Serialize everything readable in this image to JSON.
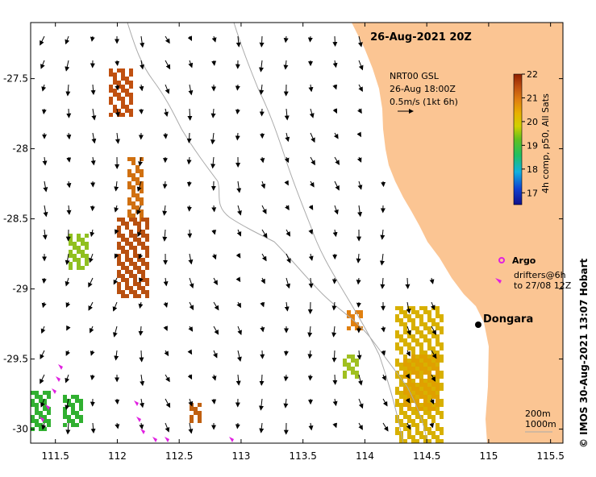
{
  "map": {
    "title": "26-Aug-2021 20Z",
    "x_ticks": [
      "111.5",
      "112",
      "112.5",
      "113",
      "113.5",
      "114",
      "114.5",
      "115",
      "115.5"
    ],
    "x_tick_values": [
      111.5,
      112,
      112.5,
      113,
      113.5,
      114,
      114.5,
      115,
      115.5
    ],
    "y_ticks": [
      "-27.5",
      "-28",
      "-28.5",
      "-29",
      "-29.5",
      "-30"
    ],
    "y_tick_values": [
      -27.5,
      -28,
      -28.5,
      -29,
      -29.5,
      -30
    ],
    "lon_range": [
      111.3,
      115.6
    ],
    "lat_range": [
      -30.1,
      -27.1
    ],
    "land_color": "#fbc593",
    "ocean_color": "#ffffff",
    "current_info": {
      "line1": "NRT00 GSL",
      "line2": "26-Aug 18:00Z",
      "line3": "0.5m/s (1kt 6h)"
    },
    "colorbar": {
      "label": "4h comp, p50, All Sats",
      "ticks": [
        "22",
        "21",
        "20",
        "19",
        "18",
        "17"
      ],
      "tick_values": [
        22,
        21,
        20,
        19,
        18,
        17
      ],
      "range": [
        16.5,
        22
      ]
    },
    "legend": {
      "argo_label": "Argo",
      "argo_color": "#e020e0",
      "drifters_line1": "drifters@6h",
      "drifters_line2": "to 27/08 12Z"
    },
    "town": {
      "name": "Dongara",
      "lon": 114.93,
      "lat": -29.25
    },
    "contour_labels": {
      "line1": "200m",
      "line2": "1000m"
    },
    "footer": "© IMOS 30-Aug-2021 13:07 Hobart"
  }
}
